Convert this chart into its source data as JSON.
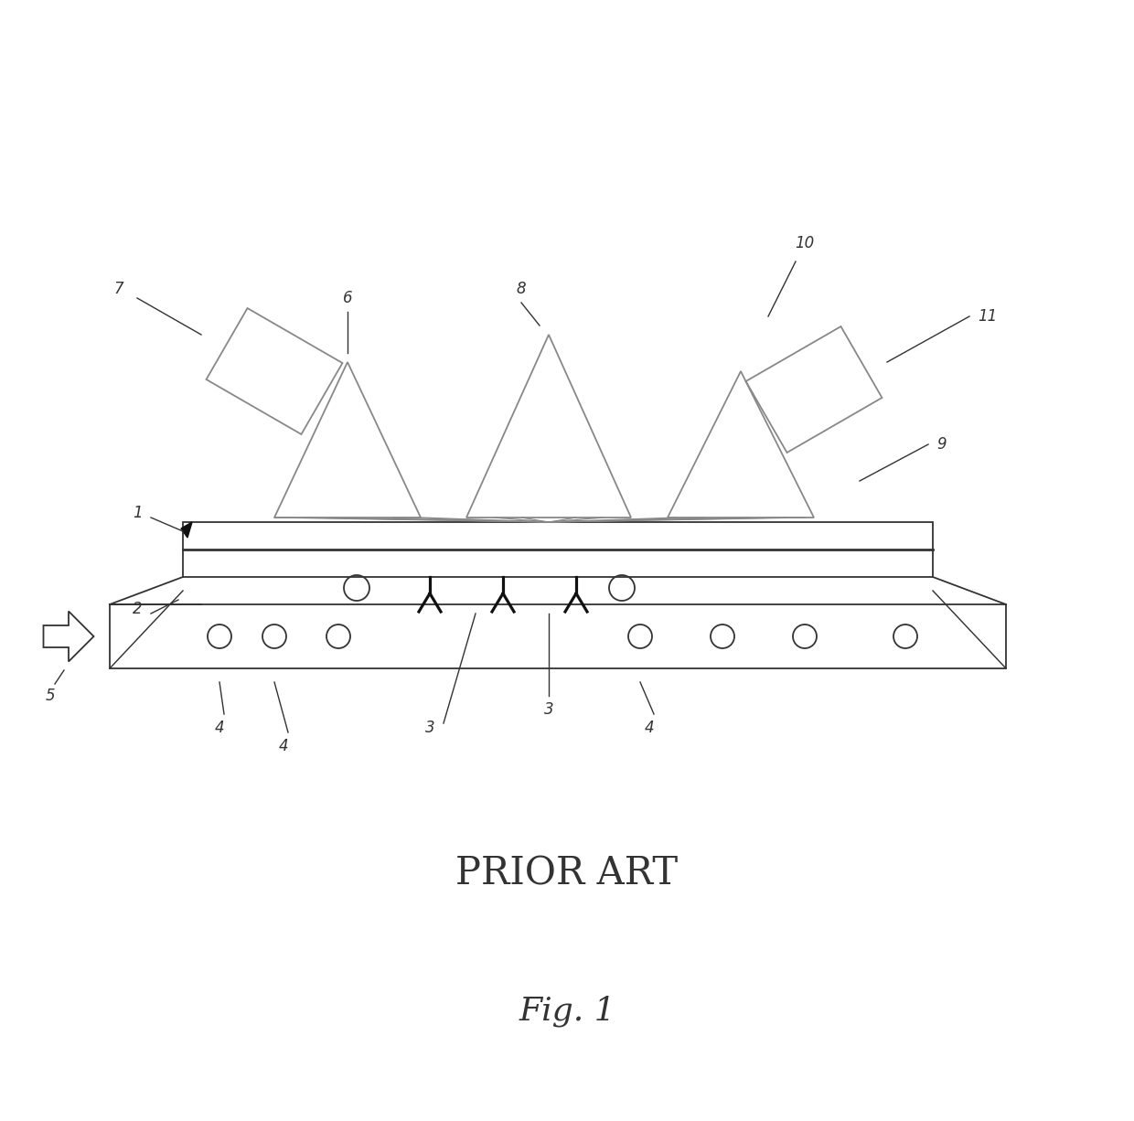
{
  "title": "Fig. 1",
  "subtitle": "PRIOR ART",
  "bg_color": "#ffffff",
  "line_color": "#888888",
  "dark_color": "#333333",
  "fig_width": 12.4,
  "fig_height": 12.26,
  "dpi": 100
}
